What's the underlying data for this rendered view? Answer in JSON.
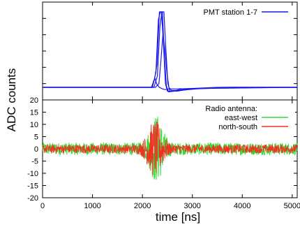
{
  "chart_data": [
    {
      "type": "line",
      "panel": "top",
      "ylabel": "ADC counts",
      "xlim": [
        0,
        5100
      ],
      "x_ticks": [
        0,
        1000,
        2000,
        3000,
        4000,
        5000
      ],
      "legend_position": "top-right",
      "series": [
        {
          "name": "PMT station 1-7",
          "color": "#1a1ae6",
          "traces": [
            {
              "x": [
                0,
                2180,
                2240,
                2290,
                2340,
                2380,
                2420,
                2460,
                2500,
                2600,
                2800,
                3500,
                5100
              ],
              "y": [
                0.0,
                0.0,
                0.1,
                0.3,
                1.0,
                1.0,
                0.6,
                0.05,
                -0.05,
                -0.05,
                -0.02,
                0.0,
                0.0
              ]
            },
            {
              "x": [
                0,
                2200,
                2270,
                2320,
                2360,
                2400,
                2440,
                2480,
                2520,
                2650,
                2900,
                3600,
                5100
              ],
              "y": [
                0.0,
                0.0,
                0.2,
                0.9,
                1.0,
                1.0,
                0.4,
                0.02,
                -0.06,
                -0.05,
                -0.02,
                0.0,
                0.0
              ]
            },
            {
              "x": [
                0,
                2230,
                2300,
                2350,
                2390,
                2430,
                2470,
                2510,
                2550,
                2700,
                3000,
                3700,
                5100
              ],
              "y": [
                0.0,
                0.0,
                0.15,
                0.8,
                1.0,
                1.0,
                0.5,
                0.05,
                -0.05,
                -0.05,
                -0.02,
                0.0,
                0.0
              ]
            },
            {
              "x": [
                0,
                2260,
                2330,
                2370,
                2410,
                2450,
                2490,
                2530,
                2580,
                2750,
                3100,
                3800,
                5100
              ],
              "y": [
                0.0,
                0.0,
                0.05,
                0.35,
                0.7,
                0.5,
                0.2,
                0.0,
                -0.04,
                -0.04,
                -0.02,
                0.0,
                0.0
              ]
            },
            {
              "x": [
                0,
                2190,
                2220,
                2250,
                2290,
                2340,
                2400,
                2450,
                2550,
                5100
              ],
              "y": [
                0.0,
                0.0,
                0.08,
                0.12,
                0.04,
                0.0,
                -0.02,
                -0.03,
                -0.02,
                0.0
              ]
            }
          ]
        }
      ]
    },
    {
      "type": "line",
      "panel": "bottom",
      "xlabel": "time [ns]",
      "ylabel": "ADC counts",
      "xlim": [
        0,
        5100
      ],
      "ylim": [
        -20,
        20
      ],
      "x_ticks": [
        0,
        1000,
        2000,
        3000,
        4000,
        5000
      ],
      "y_ticks": [
        -20,
        -15,
        -10,
        -5,
        0,
        5,
        10,
        15,
        20
      ],
      "legend_title": "Radio antenna:",
      "legend_position": "top-right",
      "series": [
        {
          "name": "east-west",
          "color": "#33dd33",
          "baseline_noise_amplitude": 2.5,
          "bursts": [
            {
              "x_center": 2280,
              "x_width": 230,
              "amplitude": 12
            }
          ]
        },
        {
          "name": "north-south",
          "color": "#ee3322",
          "baseline_noise_amplitude": 1.8,
          "bursts": [
            {
              "x_center": 2250,
              "x_width": 260,
              "amplitude": 10
            }
          ]
        }
      ]
    }
  ]
}
